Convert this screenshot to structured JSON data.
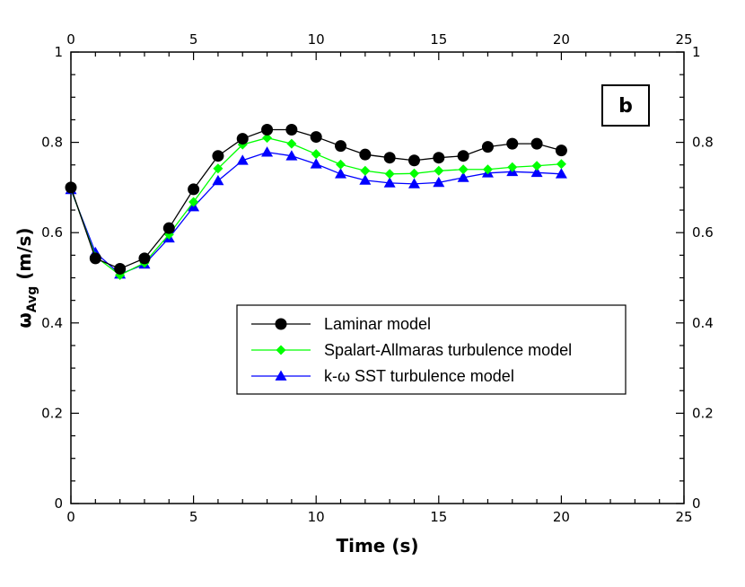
{
  "chart_data": {
    "type": "line",
    "xlabel": "Time (s)",
    "ylabel_main": "ω",
    "ylabel_sub": "Avg",
    "ylabel_unit": " (m/s)",
    "panel_label": "b",
    "xlim": [
      0,
      25
    ],
    "ylim": [
      0,
      1
    ],
    "x_ticks": [
      "0",
      "5",
      "10",
      "15",
      "20",
      "25"
    ],
    "y_ticks": [
      "0",
      "0.2",
      "0.4",
      "0.6",
      "0.8",
      "1"
    ],
    "grid": false,
    "legend_position": "center-right",
    "x": [
      0,
      1,
      2,
      3,
      4,
      5,
      6,
      7,
      8,
      9,
      10,
      11,
      12,
      13,
      14,
      15,
      16,
      17,
      18,
      19,
      20
    ],
    "series": [
      {
        "name": "Laminar model",
        "color": "#000000",
        "marker": "circle",
        "values": [
          0.7,
          0.543,
          0.52,
          0.543,
          0.61,
          0.696,
          0.77,
          0.808,
          0.828,
          0.828,
          0.812,
          0.792,
          0.773,
          0.766,
          0.76,
          0.766,
          0.77,
          0.79,
          0.797,
          0.797,
          0.782
        ]
      },
      {
        "name": "Spalart-Allmaras turbulence model",
        "color": "#00ff00",
        "marker": "diamond",
        "values": [
          0.698,
          0.547,
          0.506,
          0.533,
          0.596,
          0.668,
          0.742,
          0.795,
          0.81,
          0.797,
          0.774,
          0.751,
          0.737,
          0.73,
          0.731,
          0.737,
          0.74,
          0.74,
          0.745,
          0.748,
          0.752
        ]
      },
      {
        "name": " k-ω SST turbulence model",
        "color": "#0000ff",
        "marker": "triangle",
        "values": [
          0.695,
          0.556,
          0.508,
          0.53,
          0.588,
          0.657,
          0.715,
          0.76,
          0.778,
          0.77,
          0.752,
          0.73,
          0.716,
          0.71,
          0.708,
          0.711,
          0.722,
          0.732,
          0.735,
          0.733,
          0.73
        ]
      }
    ]
  }
}
